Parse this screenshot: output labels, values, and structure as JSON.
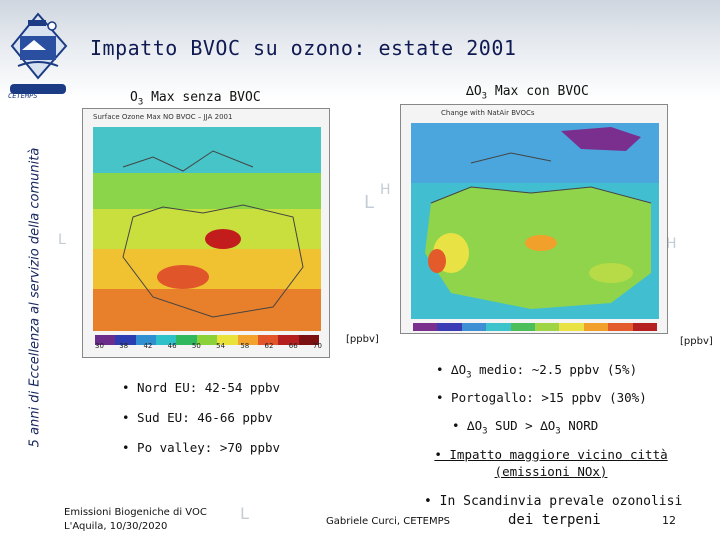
{
  "slide": {
    "title": "Impatto BVOC su ozono: estate 2001",
    "side_label": "5 anni di Eccellenza al servizio della comunità",
    "logo_caption": "CETEMPS",
    "page_number": "12"
  },
  "left_panel": {
    "title_prefix": "O",
    "title_sub": "3",
    "title_suffix": " Max senza BVOC",
    "map_header": "Surface Ozone Max NO BVOC  –  JJA 2001",
    "unit": "[ppbv]",
    "colorbar_ticks": [
      "30",
      "38",
      "42",
      "46",
      "50",
      "54",
      "58",
      "62",
      "66",
      "70"
    ],
    "colorbar_colors": [
      "#6b2c8c",
      "#2b3db0",
      "#2f8fd0",
      "#2fc1c9",
      "#2fb85e",
      "#8bd13a",
      "#e8e23a",
      "#f2a22d",
      "#e2552a",
      "#b51e1e",
      "#7b1111"
    ]
  },
  "right_panel": {
    "title_prefix": "∆O",
    "title_sub": "3",
    "title_suffix": " Max con BVOC",
    "map_header": "Change with NatAir BVOCs",
    "unit": "[ppbv]",
    "colorbar_colors": [
      "#7a2f8f",
      "#3b3bb5",
      "#3f8fd4",
      "#3cc3cc",
      "#4cbf5b",
      "#9fd544",
      "#e9e245",
      "#f2a02c",
      "#e35b2a",
      "#b52020"
    ]
  },
  "left_bullets": [
    "• Nord EU: 42-54 ppbv",
    "• Sud EU: 46-66 ppbv",
    "• Po valley: >70 ppbv"
  ],
  "right_bullets": {
    "b1_prefix": "• ∆O",
    "b1_sub": "3",
    "b1_suffix": " medio: ~2.5 ppbv (5%)",
    "b2": "• Portogallo: >15 ppbv (30%)",
    "b3_prefix": "• ∆O",
    "b3_sub": "3",
    "b3_mid": " SUD > ∆O",
    "b3_sub2": "3",
    "b3_suffix": " NORD",
    "b4_line1": "• Impatto maggiore vicino città",
    "b4_line2": "(emissioni NOx)",
    "b5_line1": "• In Scandinvia prevale ozonolisi",
    "b5_line2": "dei terpeni"
  },
  "footer": {
    "left_line1": "Emissioni Biogeniche di VOC",
    "left_line2": "L'Aquila, 10/30/2020",
    "center": "Gabriele Curci, CETEMPS"
  }
}
